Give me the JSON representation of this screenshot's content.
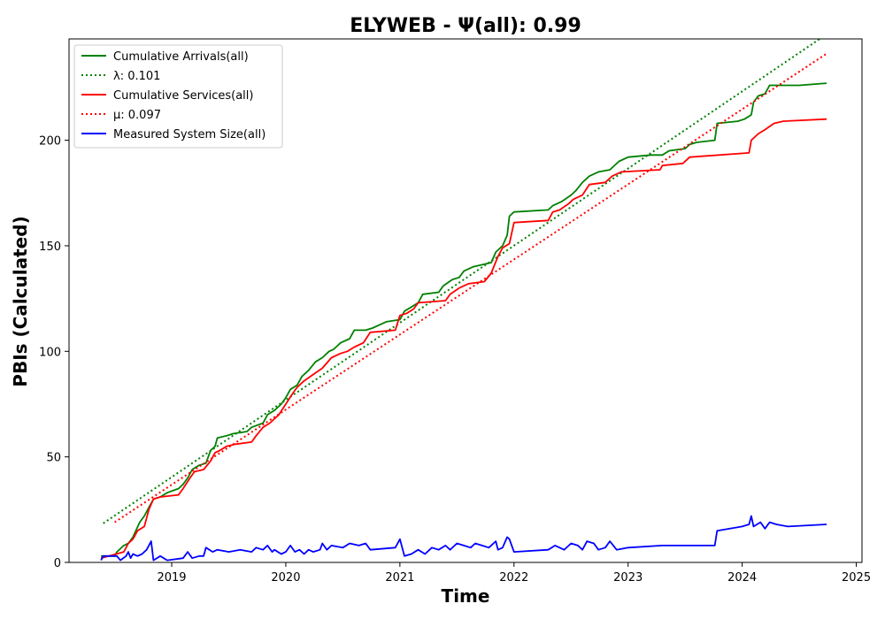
{
  "chart_data": {
    "type": "line",
    "title": "ELYWEB -  Ψ(all): 0.99",
    "xlabel": "Time",
    "ylabel": "PBIs (Calculated)",
    "xlim": [
      2018.1,
      2025.05
    ],
    "ylim": [
      0,
      248
    ],
    "x_ticks": [
      2019,
      2020,
      2021,
      2022,
      2023,
      2024,
      2025
    ],
    "y_ticks": [
      0,
      50,
      100,
      150,
      200
    ],
    "grid": false,
    "legend_position": "upper-left",
    "series": [
      {
        "name": "Cumulative Arrivals(all)",
        "color": "#008000",
        "style": "solid",
        "points": [
          [
            2018.38,
            3
          ],
          [
            2018.5,
            3
          ],
          [
            2018.52,
            5
          ],
          [
            2018.58,
            8
          ],
          [
            2018.62,
            9
          ],
          [
            2018.66,
            12
          ],
          [
            2018.72,
            19
          ],
          [
            2018.76,
            22
          ],
          [
            2018.8,
            26
          ],
          [
            2018.84,
            30
          ],
          [
            2018.9,
            31
          ],
          [
            2018.96,
            33
          ],
          [
            2019.06,
            35
          ],
          [
            2019.1,
            37
          ],
          [
            2019.14,
            40
          ],
          [
            2019.18,
            44
          ],
          [
            2019.24,
            46
          ],
          [
            2019.3,
            47
          ],
          [
            2019.34,
            53
          ],
          [
            2019.38,
            55
          ],
          [
            2019.4,
            59
          ],
          [
            2019.48,
            60
          ],
          [
            2019.54,
            61
          ],
          [
            2019.66,
            62
          ],
          [
            2019.7,
            64
          ],
          [
            2019.8,
            66
          ],
          [
            2019.84,
            70
          ],
          [
            2019.9,
            72
          ],
          [
            2019.96,
            75
          ],
          [
            2020.0,
            78
          ],
          [
            2020.04,
            82
          ],
          [
            2020.1,
            84
          ],
          [
            2020.14,
            88
          ],
          [
            2020.2,
            91
          ],
          [
            2020.26,
            95
          ],
          [
            2020.32,
            97
          ],
          [
            2020.38,
            100
          ],
          [
            2020.42,
            101
          ],
          [
            2020.48,
            104
          ],
          [
            2020.56,
            106
          ],
          [
            2020.6,
            110
          ],
          [
            2020.7,
            110
          ],
          [
            2020.76,
            111
          ],
          [
            2020.88,
            114
          ],
          [
            2021.0,
            115
          ],
          [
            2021.04,
            119
          ],
          [
            2021.1,
            121
          ],
          [
            2021.16,
            123
          ],
          [
            2021.2,
            127
          ],
          [
            2021.34,
            128
          ],
          [
            2021.38,
            131
          ],
          [
            2021.46,
            134
          ],
          [
            2021.52,
            135
          ],
          [
            2021.56,
            138
          ],
          [
            2021.64,
            140
          ],
          [
            2021.72,
            141
          ],
          [
            2021.8,
            142
          ],
          [
            2021.84,
            147
          ],
          [
            2021.9,
            150
          ],
          [
            2021.94,
            155
          ],
          [
            2021.96,
            164
          ],
          [
            2022.0,
            166
          ],
          [
            2022.3,
            167
          ],
          [
            2022.34,
            169
          ],
          [
            2022.42,
            171
          ],
          [
            2022.5,
            174
          ],
          [
            2022.54,
            176
          ],
          [
            2022.6,
            180
          ],
          [
            2022.66,
            183
          ],
          [
            2022.74,
            185
          ],
          [
            2022.84,
            186
          ],
          [
            2022.92,
            190
          ],
          [
            2023.0,
            192
          ],
          [
            2023.2,
            193
          ],
          [
            2023.3,
            193
          ],
          [
            2023.36,
            195
          ],
          [
            2023.5,
            196
          ],
          [
            2023.54,
            198
          ],
          [
            2023.6,
            199
          ],
          [
            2023.76,
            200
          ],
          [
            2023.78,
            208
          ],
          [
            2023.96,
            209
          ],
          [
            2024.02,
            210
          ],
          [
            2024.08,
            212
          ],
          [
            2024.1,
            218
          ],
          [
            2024.14,
            221
          ],
          [
            2024.2,
            222
          ],
          [
            2024.24,
            226
          ],
          [
            2024.5,
            226
          ],
          [
            2024.74,
            227
          ]
        ]
      },
      {
        "name": "λ: 0.101",
        "color": "#008000",
        "style": "dotted",
        "points": [
          [
            2018.4,
            18.5
          ],
          [
            2024.68,
            248
          ]
        ]
      },
      {
        "name": "Cumulative Services(all)",
        "color": "#ff0000",
        "style": "solid",
        "points": [
          [
            2018.38,
            2
          ],
          [
            2018.58,
            5
          ],
          [
            2018.62,
            9
          ],
          [
            2018.66,
            11
          ],
          [
            2018.7,
            15
          ],
          [
            2018.76,
            17
          ],
          [
            2018.8,
            25
          ],
          [
            2018.84,
            30
          ],
          [
            2018.9,
            31
          ],
          [
            2019.06,
            32
          ],
          [
            2019.1,
            35
          ],
          [
            2019.16,
            40
          ],
          [
            2019.2,
            43
          ],
          [
            2019.28,
            44
          ],
          [
            2019.34,
            48
          ],
          [
            2019.38,
            52
          ],
          [
            2019.42,
            53
          ],
          [
            2019.48,
            55
          ],
          [
            2019.56,
            56
          ],
          [
            2019.7,
            57
          ],
          [
            2019.74,
            60
          ],
          [
            2019.8,
            64
          ],
          [
            2019.86,
            66
          ],
          [
            2019.94,
            70
          ],
          [
            2020.0,
            75
          ],
          [
            2020.06,
            80
          ],
          [
            2020.1,
            83
          ],
          [
            2020.16,
            86
          ],
          [
            2020.24,
            89
          ],
          [
            2020.32,
            92
          ],
          [
            2020.4,
            97
          ],
          [
            2020.48,
            99
          ],
          [
            2020.54,
            100
          ],
          [
            2020.6,
            102
          ],
          [
            2020.68,
            104
          ],
          [
            2020.74,
            109
          ],
          [
            2020.96,
            110
          ],
          [
            2021.0,
            117
          ],
          [
            2021.06,
            118
          ],
          [
            2021.12,
            120
          ],
          [
            2021.16,
            123
          ],
          [
            2021.4,
            124
          ],
          [
            2021.44,
            127
          ],
          [
            2021.52,
            130
          ],
          [
            2021.6,
            132
          ],
          [
            2021.74,
            133
          ],
          [
            2021.8,
            137
          ],
          [
            2021.86,
            145
          ],
          [
            2021.9,
            149
          ],
          [
            2021.96,
            151
          ],
          [
            2022.0,
            161
          ],
          [
            2022.3,
            162
          ],
          [
            2022.34,
            166
          ],
          [
            2022.4,
            167
          ],
          [
            2022.48,
            170
          ],
          [
            2022.52,
            172
          ],
          [
            2022.6,
            174
          ],
          [
            2022.66,
            179
          ],
          [
            2022.8,
            180
          ],
          [
            2022.86,
            183
          ],
          [
            2022.94,
            185
          ],
          [
            2023.28,
            186
          ],
          [
            2023.3,
            188
          ],
          [
            2023.48,
            189
          ],
          [
            2023.54,
            192
          ],
          [
            2024.06,
            194
          ],
          [
            2024.08,
            200
          ],
          [
            2024.14,
            203
          ],
          [
            2024.2,
            205
          ],
          [
            2024.28,
            208
          ],
          [
            2024.36,
            209
          ],
          [
            2024.74,
            210
          ]
        ]
      },
      {
        "name": "μ: 0.097",
        "color": "#ff0000",
        "style": "dotted",
        "points": [
          [
            2018.5,
            19
          ],
          [
            2024.74,
            241
          ]
        ]
      },
      {
        "name": "Measured System Size(all)",
        "color": "#0000ff",
        "style": "solid",
        "points": [
          [
            2018.38,
            1
          ],
          [
            2018.4,
            3
          ],
          [
            2018.52,
            3
          ],
          [
            2018.55,
            1
          ],
          [
            2018.6,
            3
          ],
          [
            2018.62,
            5
          ],
          [
            2018.64,
            2
          ],
          [
            2018.66,
            4
          ],
          [
            2018.7,
            3
          ],
          [
            2018.74,
            4
          ],
          [
            2018.78,
            6
          ],
          [
            2018.8,
            8
          ],
          [
            2018.82,
            10
          ],
          [
            2018.84,
            1
          ],
          [
            2018.9,
            3
          ],
          [
            2018.96,
            1
          ],
          [
            2019.1,
            2
          ],
          [
            2019.14,
            5
          ],
          [
            2019.18,
            2
          ],
          [
            2019.24,
            3
          ],
          [
            2019.28,
            3
          ],
          [
            2019.3,
            7
          ],
          [
            2019.36,
            5
          ],
          [
            2019.4,
            6
          ],
          [
            2019.5,
            5
          ],
          [
            2019.6,
            6
          ],
          [
            2019.7,
            5
          ],
          [
            2019.74,
            7
          ],
          [
            2019.8,
            6
          ],
          [
            2019.84,
            8
          ],
          [
            2019.88,
            5
          ],
          [
            2019.9,
            6
          ],
          [
            2019.96,
            4
          ],
          [
            2020.0,
            5
          ],
          [
            2020.04,
            8
          ],
          [
            2020.08,
            5
          ],
          [
            2020.12,
            6
          ],
          [
            2020.16,
            4
          ],
          [
            2020.2,
            6
          ],
          [
            2020.24,
            5
          ],
          [
            2020.3,
            6
          ],
          [
            2020.32,
            9
          ],
          [
            2020.36,
            6
          ],
          [
            2020.4,
            8
          ],
          [
            2020.5,
            7
          ],
          [
            2020.56,
            9
          ],
          [
            2020.64,
            8
          ],
          [
            2020.7,
            9
          ],
          [
            2020.74,
            6
          ],
          [
            2020.96,
            7
          ],
          [
            2021.0,
            11
          ],
          [
            2021.04,
            3
          ],
          [
            2021.1,
            4
          ],
          [
            2021.16,
            6
          ],
          [
            2021.22,
            4
          ],
          [
            2021.28,
            7
          ],
          [
            2021.34,
            6
          ],
          [
            2021.4,
            8
          ],
          [
            2021.44,
            6
          ],
          [
            2021.5,
            9
          ],
          [
            2021.56,
            8
          ],
          [
            2021.62,
            7
          ],
          [
            2021.66,
            9
          ],
          [
            2021.72,
            8
          ],
          [
            2021.78,
            7
          ],
          [
            2021.84,
            10
          ],
          [
            2021.86,
            6
          ],
          [
            2021.9,
            7
          ],
          [
            2021.94,
            12
          ],
          [
            2021.96,
            11
          ],
          [
            2022.0,
            5
          ],
          [
            2022.3,
            6
          ],
          [
            2022.36,
            8
          ],
          [
            2022.44,
            6
          ],
          [
            2022.5,
            9
          ],
          [
            2022.56,
            8
          ],
          [
            2022.6,
            6
          ],
          [
            2022.64,
            10
          ],
          [
            2022.7,
            9
          ],
          [
            2022.74,
            6
          ],
          [
            2022.8,
            7
          ],
          [
            2022.84,
            10
          ],
          [
            2022.9,
            6
          ],
          [
            2023.0,
            7
          ],
          [
            2023.3,
            8
          ],
          [
            2023.6,
            8
          ],
          [
            2023.76,
            8
          ],
          [
            2023.78,
            15
          ],
          [
            2024.0,
            17
          ],
          [
            2024.06,
            18
          ],
          [
            2024.08,
            22
          ],
          [
            2024.1,
            17
          ],
          [
            2024.16,
            19
          ],
          [
            2024.2,
            16
          ],
          [
            2024.24,
            19
          ],
          [
            2024.3,
            18
          ],
          [
            2024.4,
            17
          ],
          [
            2024.74,
            18
          ]
        ]
      }
    ]
  }
}
